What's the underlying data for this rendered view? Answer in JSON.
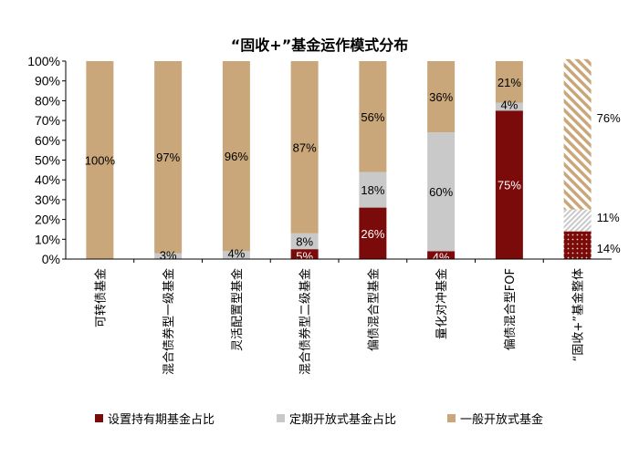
{
  "chart_data": {
    "type": "bar",
    "stacked": true,
    "title": "“固收+”基金运作模式分布",
    "categories": [
      "可转债基金",
      "混合债券型一级基金",
      "灵活配置型基金",
      "混合债券型二级基金",
      "偏债混合型基金",
      "量化对冲基金",
      "偏债混合型FOF",
      "“固收+”基金整体"
    ],
    "y_ticks": [
      "0%",
      "10%",
      "20%",
      "30%",
      "40%",
      "50%",
      "60%",
      "70%",
      "80%",
      "90%",
      "100%"
    ],
    "ylim": [
      0,
      100
    ],
    "grid": false,
    "legend_position": "bottom",
    "series": [
      {
        "name": "设置持有期基金占比",
        "color": "#7b0a0a",
        "values": [
          0,
          0,
          0,
          5,
          26,
          4,
          75,
          14
        ],
        "labels": [
          "",
          "",
          "",
          "5%",
          "26%",
          "4%",
          "75%",
          "14%"
        ]
      },
      {
        "name": "定期开放式基金占比",
        "color": "#c9c9c9",
        "values": [
          0,
          3,
          4,
          8,
          18,
          60,
          4,
          11
        ],
        "labels": [
          "",
          "3%",
          "4%",
          "8%",
          "18%",
          "60%",
          "4%",
          "11%"
        ]
      },
      {
        "name": "一般开放式基金",
        "color": "#c9a77a",
        "values": [
          100,
          97,
          96,
          87,
          56,
          36,
          21,
          76
        ],
        "labels": [
          "100%",
          "97%",
          "96%",
          "87%",
          "56%",
          "36%",
          "21%",
          "76%"
        ]
      }
    ]
  }
}
